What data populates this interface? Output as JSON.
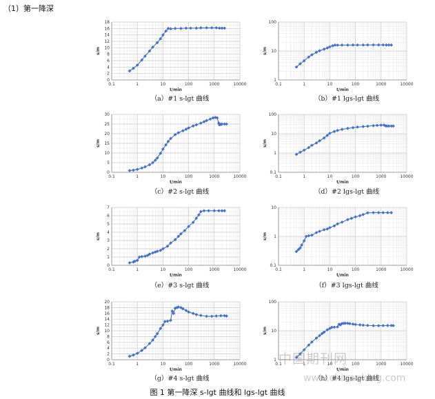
{
  "heading": "（1）第一降深",
  "figure_caption": "图 1 第一降深 s-lgt 曲线和 lgs-lgt 曲线",
  "watermark": {
    "cn": "中国期刊网",
    "url": "www.chinaqking.com"
  },
  "colors": {
    "series": "#4472C4",
    "grid_major": "#c8c8c8",
    "grid_minor": "#e6e6e6",
    "axis": "#888888"
  },
  "chart_data": [
    {
      "id": "a",
      "type": "scatter",
      "caption": "（a）#1 s-lgt 曲线",
      "xlabel": "t/min",
      "ylabel": "s/m",
      "xscale": "log",
      "yscale": "linear",
      "xlim": [
        0.1,
        10000
      ],
      "ylim": [
        0,
        18
      ],
      "yticks": [
        0,
        2,
        4,
        6,
        8,
        10,
        12,
        14,
        16,
        18
      ],
      "grid": true,
      "marker": "diamond",
      "points": [
        [
          0.5,
          2.8
        ],
        [
          0.7,
          3.6
        ],
        [
          1,
          4.6
        ],
        [
          1.5,
          6.2
        ],
        [
          2,
          7.4
        ],
        [
          3,
          9
        ],
        [
          4,
          10.2
        ],
        [
          6,
          11.6
        ],
        [
          8,
          12.8
        ],
        [
          10,
          14
        ],
        [
          13,
          15.2
        ],
        [
          16,
          16
        ],
        [
          20,
          15.9
        ],
        [
          30,
          16
        ],
        [
          50,
          16
        ],
        [
          80,
          16.1
        ],
        [
          120,
          16.1
        ],
        [
          200,
          16.1
        ],
        [
          300,
          16.2
        ],
        [
          500,
          16.2
        ],
        [
          800,
          16.2
        ],
        [
          1200,
          16.2
        ],
        [
          1600,
          16.1
        ],
        [
          2000,
          16.1
        ],
        [
          2500,
          16.1
        ]
      ]
    },
    {
      "id": "b",
      "type": "scatter",
      "caption": "（b）#1 lgs-lgt 曲线",
      "xlabel": "t/min",
      "ylabel": "s/m",
      "xscale": "log",
      "yscale": "log",
      "xlim": [
        0.1,
        10000
      ],
      "ylim": [
        1,
        100
      ],
      "yticks": [
        1,
        10,
        100
      ],
      "grid": true,
      "marker": "diamond",
      "points": [
        [
          0.5,
          2.8
        ],
        [
          0.7,
          3.6
        ],
        [
          1,
          4.6
        ],
        [
          1.5,
          6.2
        ],
        [
          2,
          7.4
        ],
        [
          3,
          9
        ],
        [
          4,
          10.2
        ],
        [
          6,
          11.6
        ],
        [
          8,
          12.8
        ],
        [
          10,
          14
        ],
        [
          13,
          15.2
        ],
        [
          16,
          16
        ],
        [
          20,
          15.9
        ],
        [
          30,
          16
        ],
        [
          50,
          16
        ],
        [
          80,
          16.1
        ],
        [
          120,
          16.1
        ],
        [
          200,
          16.1
        ],
        [
          300,
          16.2
        ],
        [
          500,
          16.2
        ],
        [
          800,
          16.2
        ],
        [
          1200,
          16.2
        ],
        [
          1600,
          16.1
        ],
        [
          2000,
          16.1
        ],
        [
          2500,
          16.1
        ]
      ]
    },
    {
      "id": "c",
      "type": "scatter",
      "caption": "（c）#2 s-lgt 曲线",
      "xlabel": "t/min",
      "ylabel": "s/m",
      "xscale": "log",
      "yscale": "linear",
      "xlim": [
        0.1,
        10000
      ],
      "ylim": [
        0,
        30
      ],
      "yticks": [
        0,
        5,
        10,
        15,
        20,
        25,
        30
      ],
      "grid": true,
      "marker": "diamond",
      "points": [
        [
          0.5,
          0.9
        ],
        [
          0.7,
          1.1
        ],
        [
          1,
          1.5
        ],
        [
          1.5,
          2.2
        ],
        [
          2,
          2.8
        ],
        [
          3,
          3.9
        ],
        [
          4,
          5
        ],
        [
          5,
          6.2
        ],
        [
          6,
          7.4
        ],
        [
          8,
          9.8
        ],
        [
          10,
          12
        ],
        [
          13,
          14.2
        ],
        [
          16,
          16
        ],
        [
          20,
          17.5
        ],
        [
          30,
          19.5
        ],
        [
          40,
          20.5
        ],
        [
          60,
          21.5
        ],
        [
          80,
          22.3
        ],
        [
          100,
          23
        ],
        [
          150,
          24
        ],
        [
          200,
          24.6
        ],
        [
          300,
          25.5
        ],
        [
          400,
          26.2
        ],
        [
          500,
          26.8
        ],
        [
          700,
          27.6
        ],
        [
          900,
          28.2
        ],
        [
          1100,
          28.4
        ],
        [
          1300,
          28.2
        ],
        [
          1500,
          25.5
        ],
        [
          1600,
          24.6
        ],
        [
          1800,
          24.8
        ],
        [
          2000,
          25
        ],
        [
          2500,
          25
        ],
        [
          3000,
          25
        ]
      ]
    },
    {
      "id": "d",
      "type": "scatter",
      "caption": "（d）#2 lgs-lgt 曲线",
      "xlabel": "t/min",
      "ylabel": "s/m",
      "xscale": "log",
      "yscale": "log",
      "xlim": [
        0.1,
        10000
      ],
      "ylim": [
        0.1,
        100
      ],
      "yticks": [
        0.1,
        1,
        10,
        100
      ],
      "grid": true,
      "marker": "diamond",
      "points": [
        [
          0.5,
          0.85
        ],
        [
          0.7,
          1.1
        ],
        [
          1,
          1.4
        ],
        [
          1.5,
          1.9
        ],
        [
          2,
          2.5
        ],
        [
          3,
          3.3
        ],
        [
          4,
          4.3
        ],
        [
          6,
          6
        ],
        [
          8,
          8.2
        ],
        [
          10,
          10.5
        ],
        [
          15,
          13
        ],
        [
          20,
          14.8
        ],
        [
          30,
          16.8
        ],
        [
          50,
          18.8
        ],
        [
          80,
          20.5
        ],
        [
          120,
          22
        ],
        [
          200,
          23.5
        ],
        [
          300,
          24.5
        ],
        [
          500,
          26
        ],
        [
          700,
          27
        ],
        [
          1000,
          27.8
        ],
        [
          1300,
          28
        ],
        [
          1500,
          25.5
        ],
        [
          1700,
          25
        ],
        [
          2000,
          25
        ],
        [
          2500,
          25
        ],
        [
          3000,
          25
        ]
      ]
    },
    {
      "id": "e",
      "type": "scatter",
      "caption": "（e）#3 s-lgt 曲线",
      "xlabel": "t/min",
      "ylabel": "s/m",
      "xscale": "log",
      "yscale": "linear",
      "xlim": [
        0.1,
        10000
      ],
      "ylim": [
        0,
        7
      ],
      "yticks": [
        0,
        1,
        2,
        3,
        4,
        5,
        6,
        7
      ],
      "grid": true,
      "marker": "diamond",
      "points": [
        [
          0.5,
          0.3
        ],
        [
          0.7,
          0.4
        ],
        [
          0.8,
          0.5
        ],
        [
          1,
          0.6
        ],
        [
          1.2,
          1
        ],
        [
          1.5,
          1.05
        ],
        [
          2,
          1.1
        ],
        [
          2.5,
          1.2
        ],
        [
          3,
          1.35
        ],
        [
          4,
          1.5
        ],
        [
          5,
          1.6
        ],
        [
          6,
          1.7
        ],
        [
          8,
          1.8
        ],
        [
          10,
          2
        ],
        [
          15,
          2.3
        ],
        [
          20,
          2.7
        ],
        [
          30,
          3.1
        ],
        [
          40,
          3.5
        ],
        [
          50,
          3.8
        ],
        [
          70,
          4.2
        ],
        [
          100,
          4.7
        ],
        [
          150,
          5.2
        ],
        [
          200,
          5.7
        ],
        [
          250,
          6.1
        ],
        [
          300,
          6.5
        ],
        [
          400,
          6.6
        ],
        [
          600,
          6.6
        ],
        [
          1000,
          6.6
        ],
        [
          1500,
          6.6
        ],
        [
          2000,
          6.6
        ],
        [
          2500,
          6.6
        ]
      ]
    },
    {
      "id": "f",
      "type": "scatter",
      "caption": "（f）#3 lgs-lgt 曲线",
      "xlabel": "t/min",
      "ylabel": "s/m",
      "xscale": "log",
      "yscale": "log",
      "xlim": [
        0.1,
        10000
      ],
      "ylim": [
        0.1,
        10
      ],
      "yticks": [
        0.1,
        1,
        10
      ],
      "grid": true,
      "marker": "diamond",
      "points": [
        [
          0.5,
          0.3
        ],
        [
          0.6,
          0.35
        ],
        [
          0.7,
          0.4
        ],
        [
          0.8,
          0.5
        ],
        [
          1,
          0.7
        ],
        [
          1.2,
          1
        ],
        [
          1.5,
          1.05
        ],
        [
          2,
          1.1
        ],
        [
          3,
          1.35
        ],
        [
          4,
          1.5
        ],
        [
          6,
          1.7
        ],
        [
          8,
          1.8
        ],
        [
          10,
          2
        ],
        [
          15,
          2.3
        ],
        [
          20,
          2.7
        ],
        [
          30,
          3.1
        ],
        [
          50,
          3.8
        ],
        [
          70,
          4.2
        ],
        [
          100,
          4.7
        ],
        [
          150,
          5.2
        ],
        [
          200,
          5.7
        ],
        [
          300,
          6.5
        ],
        [
          500,
          6.6
        ],
        [
          800,
          6.6
        ],
        [
          1200,
          6.6
        ],
        [
          1800,
          6.6
        ],
        [
          2500,
          6.6
        ]
      ]
    },
    {
      "id": "g",
      "type": "scatter",
      "caption": "（g）#4 s-lgt 曲线",
      "xlabel": "t/min",
      "ylabel": "s/m",
      "xscale": "log",
      "yscale": "linear",
      "xlim": [
        0.1,
        10000
      ],
      "ylim": [
        0,
        20
      ],
      "yticks": [
        0,
        2,
        4,
        6,
        8,
        10,
        12,
        14,
        16,
        18,
        20
      ],
      "grid": true,
      "marker": "diamond",
      "points": [
        [
          0.5,
          1.2
        ],
        [
          0.7,
          1.6
        ],
        [
          1,
          2.2
        ],
        [
          1.5,
          3.2
        ],
        [
          2,
          4.1
        ],
        [
          3,
          5.6
        ],
        [
          4,
          6.8
        ],
        [
          5,
          8
        ],
        [
          6,
          9
        ],
        [
          8,
          10.8
        ],
        [
          10,
          12
        ],
        [
          12,
          13.2
        ],
        [
          15,
          13.3
        ],
        [
          20,
          13.6
        ],
        [
          23,
          16.8
        ],
        [
          26,
          16
        ],
        [
          30,
          17.8
        ],
        [
          35,
          18
        ],
        [
          40,
          18.2
        ],
        [
          50,
          18
        ],
        [
          60,
          17.6
        ],
        [
          80,
          17
        ],
        [
          100,
          16.5
        ],
        [
          150,
          16
        ],
        [
          200,
          15.6
        ],
        [
          300,
          15.3
        ],
        [
          500,
          15
        ],
        [
          800,
          15
        ],
        [
          1200,
          15.1
        ],
        [
          1800,
          15.2
        ],
        [
          2500,
          15.2
        ],
        [
          3000,
          15.1
        ]
      ]
    },
    {
      "id": "h",
      "type": "scatter",
      "caption": "（h）#4 lgs-lgt 曲线",
      "xlabel": "t/min",
      "ylabel": "s/m",
      "xscale": "log",
      "yscale": "log",
      "xlim": [
        0.1,
        10000
      ],
      "ylim": [
        1,
        100
      ],
      "yticks": [
        1,
        10,
        100
      ],
      "grid": true,
      "marker": "diamond",
      "points": [
        [
          0.5,
          1.2
        ],
        [
          0.7,
          1.6
        ],
        [
          1,
          2.2
        ],
        [
          1.5,
          3.2
        ],
        [
          2,
          4.1
        ],
        [
          3,
          5.6
        ],
        [
          4,
          6.8
        ],
        [
          5,
          8
        ],
        [
          6,
          9
        ],
        [
          8,
          10.8
        ],
        [
          10,
          12
        ],
        [
          12,
          13.2
        ],
        [
          15,
          13.3
        ],
        [
          20,
          13.6
        ],
        [
          23,
          16.8
        ],
        [
          26,
          16
        ],
        [
          30,
          17.8
        ],
        [
          35,
          18
        ],
        [
          40,
          18.2
        ],
        [
          50,
          18
        ],
        [
          60,
          17.6
        ],
        [
          80,
          17
        ],
        [
          100,
          16.5
        ],
        [
          150,
          16
        ],
        [
          200,
          15.6
        ],
        [
          300,
          15.3
        ],
        [
          500,
          15
        ],
        [
          800,
          15
        ],
        [
          1200,
          15.1
        ],
        [
          1800,
          15.2
        ],
        [
          2500,
          15.2
        ],
        [
          3000,
          15.1
        ]
      ]
    }
  ]
}
